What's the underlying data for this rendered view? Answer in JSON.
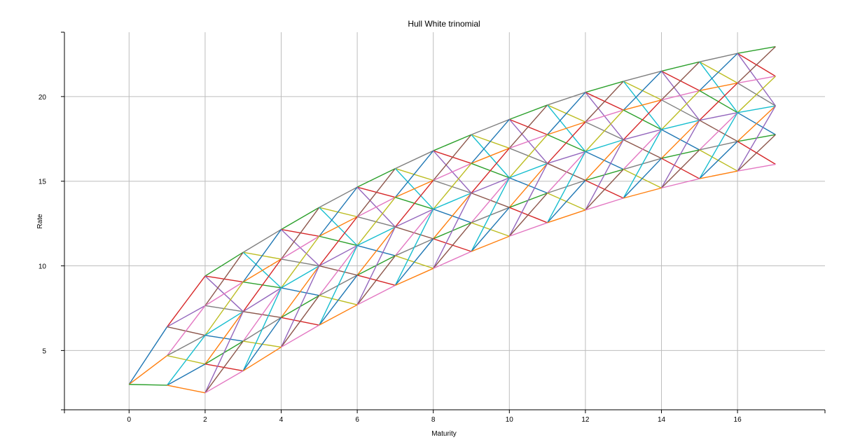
{
  "chart_data": {
    "type": "line",
    "title": "Hull White trinomial",
    "xlabel": "Maturity",
    "ylabel": "Rate",
    "xlim": [
      -1.7,
      18.3
    ],
    "ylim": [
      1.5,
      23.8
    ],
    "xticks": [
      0,
      2,
      4,
      6,
      8,
      10,
      12,
      14,
      16
    ],
    "yticks": [
      5,
      10,
      15,
      20
    ],
    "grid": true,
    "legend": "none",
    "nodes": {
      "0": [
        3.0
      ],
      "1": [
        6.4,
        4.7,
        2.95
      ],
      "2": [
        9.4,
        7.65,
        5.9,
        4.2,
        2.5
      ],
      "3": [
        10.8,
        9.05,
        7.3,
        5.55,
        3.8
      ],
      "4": [
        12.15,
        10.4,
        8.7,
        6.95,
        5.2
      ],
      "5": [
        13.45,
        11.75,
        10.0,
        8.25,
        6.5
      ],
      "6": [
        14.65,
        12.9,
        11.2,
        9.45,
        7.7
      ],
      "7": [
        15.75,
        14.05,
        12.3,
        10.6,
        8.85
      ],
      "8": [
        16.8,
        15.05,
        13.35,
        11.6,
        9.85
      ],
      "9": [
        17.75,
        16.05,
        14.3,
        12.55,
        10.85
      ],
      "10": [
        18.65,
        16.95,
        15.2,
        13.45,
        11.75
      ],
      "11": [
        19.5,
        17.75,
        16.05,
        14.3,
        12.55
      ],
      "12": [
        20.25,
        18.5,
        16.75,
        15.05,
        13.3
      ],
      "13": [
        20.9,
        19.2,
        17.45,
        15.7,
        14.0
      ],
      "14": [
        21.5,
        19.8,
        18.05,
        16.35,
        14.6
      ],
      "15": [
        22.05,
        20.35,
        18.6,
        16.85,
        15.15
      ],
      "16": [
        22.55,
        20.8,
        19.05,
        17.35,
        15.6
      ],
      "17": [
        22.95,
        21.2,
        19.45,
        17.75,
        16.0
      ]
    },
    "palette": [
      "#1f77b4",
      "#ff7f0e",
      "#2ca02c",
      "#d62728",
      "#9467bd",
      "#8c564b",
      "#e377c2",
      "#7f7f7f",
      "#bcbd22",
      "#17becf"
    ]
  }
}
